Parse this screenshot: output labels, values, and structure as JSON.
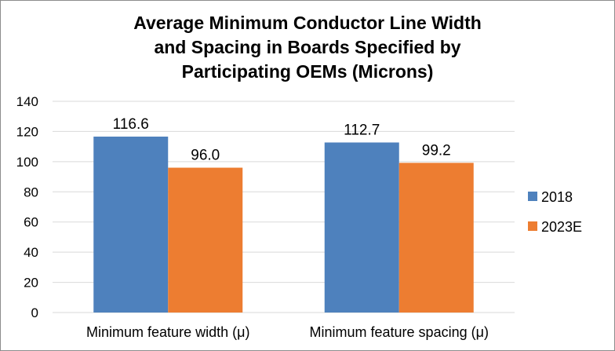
{
  "chart_data": {
    "type": "bar",
    "title": [
      "Average Minimum Conductor Line Width",
      "and Spacing in Boards Specified by",
      "Participating OEMs (Microns)"
    ],
    "categories": [
      "Minimum  feature width (μ)",
      "Minimum  feature spacing (μ)"
    ],
    "series": [
      {
        "name": "2018",
        "values": [
          116.6,
          112.7
        ],
        "labels": [
          "116.6",
          "112.7"
        ],
        "color": "#4e81bd"
      },
      {
        "name": "2023E",
        "values": [
          96.0,
          99.2
        ],
        "labels": [
          "96.0",
          "99.2"
        ],
        "color": "#ed7d31"
      }
    ],
    "ylim": [
      0,
      140
    ],
    "yticks": [
      "0",
      "20",
      "40",
      "60",
      "80",
      "100",
      "120",
      "140"
    ],
    "grid": true,
    "legend": "right"
  }
}
